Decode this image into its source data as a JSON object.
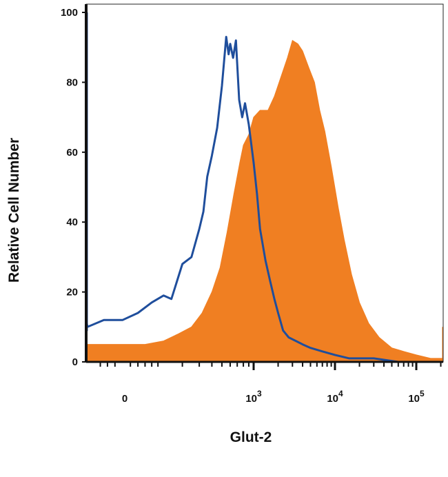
{
  "chart_data": {
    "type": "area",
    "title": "",
    "xlabel": "Glut-2",
    "ylabel": "Relative Cell Number",
    "x_scale": "biexponential",
    "ylim": [
      0,
      100
    ],
    "y_ticks": [
      0,
      20,
      40,
      60,
      80,
      100
    ],
    "x_tick_labels": [
      {
        "value": 0,
        "base": "0",
        "exp": ""
      },
      {
        "value": 1000,
        "base": "10",
        "exp": "3"
      },
      {
        "value": 10000,
        "base": "10",
        "exp": "4"
      },
      {
        "value": 100000,
        "base": "10",
        "exp": "5"
      }
    ],
    "grid": false,
    "legend": "none",
    "series": [
      {
        "style": "filled",
        "color": "#f07f22",
        "x": [
          -200,
          -100,
          0,
          60,
          120,
          180,
          250,
          320,
          400,
          480,
          560,
          650,
          740,
          800,
          900,
          1000,
          1200,
          1500,
          1800,
          2200,
          2600,
          3000,
          3500,
          4000,
          4800,
          5600,
          6500,
          7500,
          9000,
          11000,
          13000,
          16000,
          20000,
          26000,
          35000,
          50000,
          70000,
          100000,
          150000,
          220000,
          240000,
          260000
        ],
        "values": [
          5,
          5,
          5,
          5,
          6,
          8,
          10,
          14,
          20,
          27,
          37,
          48,
          57,
          62,
          65,
          70,
          72,
          72,
          76,
          82,
          87,
          92,
          91,
          89,
          84,
          80,
          72,
          66,
          56,
          44,
          35,
          25,
          17,
          11,
          7,
          4,
          3,
          2,
          1,
          1,
          10,
          1
        ]
      },
      {
        "style": "line",
        "color": "#1f4e9c",
        "x": [
          -260,
          -250,
          -230,
          -200,
          -150,
          -100,
          -50,
          0,
          40,
          80,
          120,
          150,
          200,
          250,
          300,
          330,
          360,
          400,
          450,
          500,
          550,
          580,
          600,
          640,
          680,
          730,
          780,
          830,
          900,
          1000,
          1100,
          1200,
          1400,
          1600,
          1800,
          2000,
          2300,
          2700,
          3300,
          4000,
          5000,
          7000,
          10000,
          15000,
          30000,
          60000,
          150000,
          260000
        ],
        "values": [
          100,
          20,
          9,
          11,
          11,
          10,
          12,
          12,
          14,
          17,
          19,
          18,
          28,
          30,
          38,
          43,
          53,
          59,
          67,
          79,
          93,
          88,
          91,
          87,
          92,
          75,
          70,
          74,
          68,
          57,
          48,
          38,
          29,
          23,
          18,
          14,
          9,
          7,
          6,
          5,
          4,
          3,
          2,
          1,
          1,
          0,
          0,
          0
        ]
      }
    ]
  }
}
